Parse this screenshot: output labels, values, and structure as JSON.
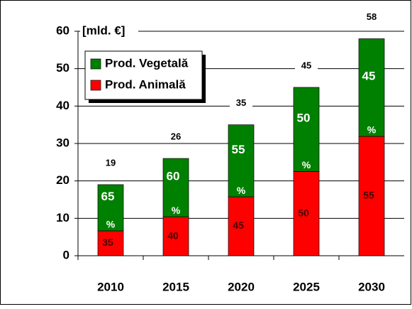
{
  "chart_data": {
    "type": "stacked_bar",
    "axis_label": "[mld. €]",
    "categories": [
      "2010",
      "2015",
      "2020",
      "2025",
      "2030"
    ],
    "series": [
      {
        "name": "Prod. Animală",
        "color": "#ff0000",
        "values": [
          6.65,
          10.4,
          15.75,
          22.5,
          31.9
        ],
        "shares": [
          "35",
          "40",
          "45",
          "50",
          "55"
        ]
      },
      {
        "name": "Prod. Vegetală",
        "color": "#008000",
        "values": [
          12.35,
          15.6,
          19.25,
          22.5,
          26.1
        ],
        "shares": [
          "65",
          "60",
          "55",
          "50",
          "45"
        ]
      }
    ],
    "share_unit": "%",
    "totals": [
      19,
      26,
      35,
      45,
      58
    ],
    "ylim": [
      0,
      60
    ],
    "yticks": [
      0,
      10,
      20,
      30,
      40,
      50,
      60
    ],
    "grid": true,
    "legend": "upper left"
  }
}
